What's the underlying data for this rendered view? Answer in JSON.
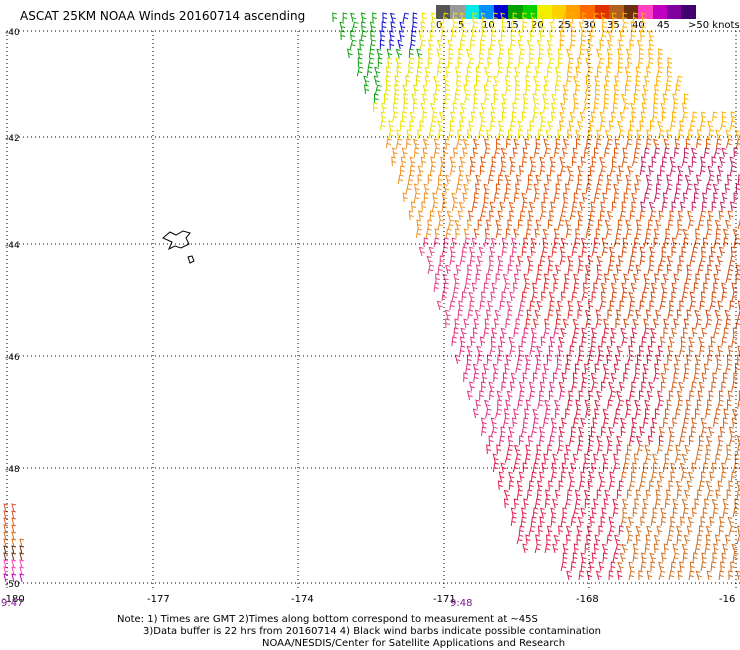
{
  "title": "ASCAT 25KM NOAA Winds 20160714 ascending",
  "legend": {
    "labels": [
      "0",
      "5",
      "10",
      "15",
      "20",
      "25",
      "30",
      "35",
      "40",
      "45",
      ">50 knots"
    ],
    "colors": [
      "#555555",
      "#9a9a9a",
      "#00e8e8",
      "#0090ff",
      "#0000d0",
      "#00a000",
      "#00d000",
      "#f0f000",
      "#ffd000",
      "#ffa000",
      "#ff6a00",
      "#e03000",
      "#b06020",
      "#6a3010",
      "#ff40c0",
      "#c000c0",
      "#8000a0",
      "#400070"
    ]
  },
  "axes": {
    "lon_labels": [
      "-180",
      "-177",
      "-174",
      "-171",
      "-168",
      "-16"
    ],
    "lat_labels": [
      "-40",
      "-42",
      "-44",
      "-46",
      "-48",
      "-50"
    ]
  },
  "time_labels": [
    "9:47",
    "9:48"
  ],
  "notes": [
    "Note: 1) Times are GMT 2)Times along bottom correspond to measurement at ~45S",
    "3)Data buffer is 22 hrs from 20160714 4) Black wind barbs indicate possible contamination",
    "NOAA/NESDIS/Center for Satellite Applications and Research"
  ],
  "map": {
    "region": "South Pacific, 40S-50S, 180W-165W",
    "grid": "dotted",
    "swaths": 2,
    "wind_speed_range_knots": [
      15,
      50
    ]
  }
}
